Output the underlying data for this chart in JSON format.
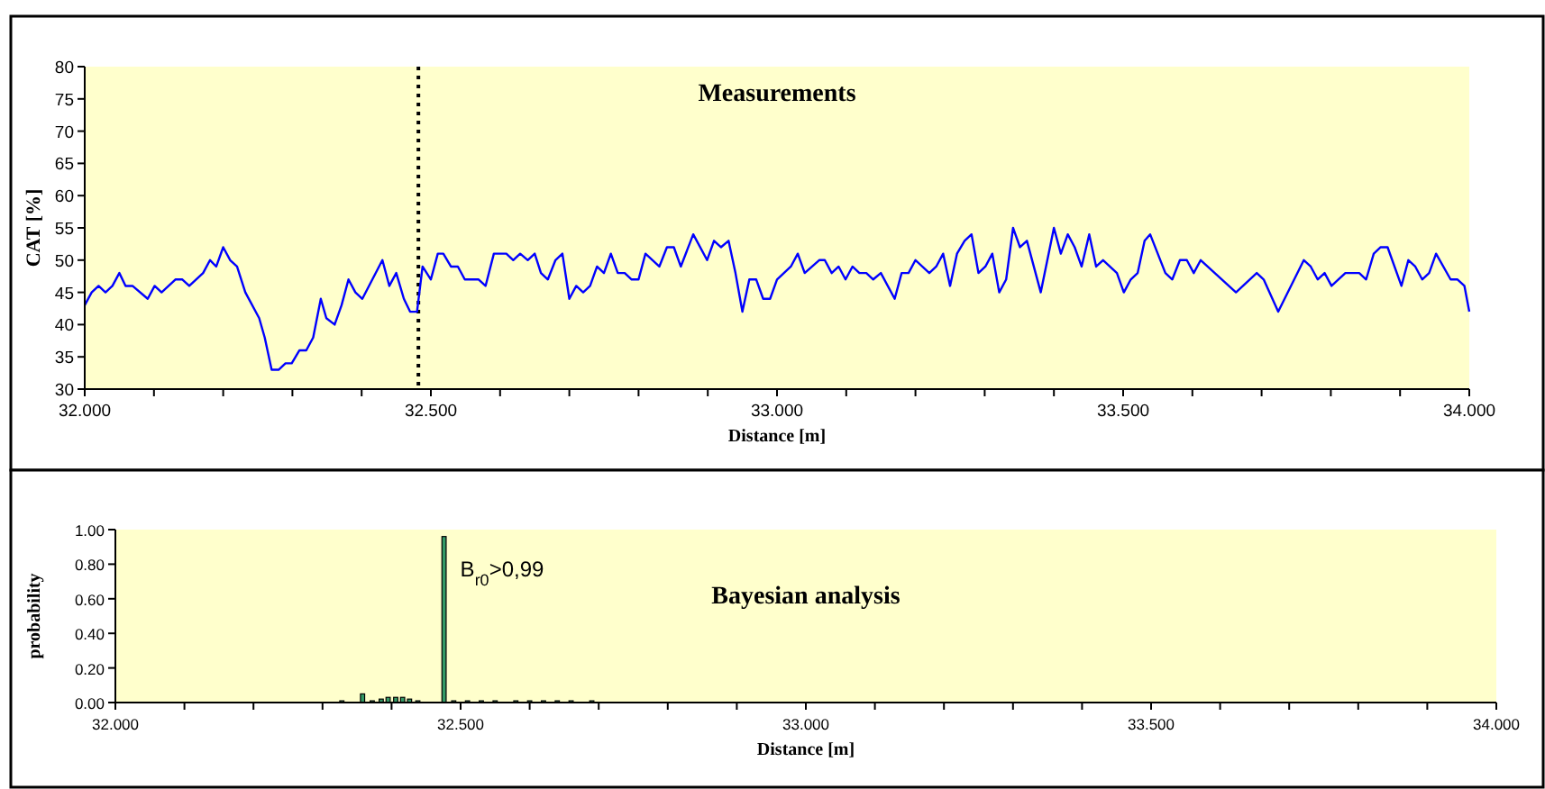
{
  "chart_data": [
    {
      "type": "line",
      "title": "Measurements",
      "xlabel": "Distance [m]",
      "ylabel": "CAT [%]",
      "grid": false,
      "marker": "none",
      "line_style": "solid",
      "xlim": [
        32,
        34
      ],
      "ylim": [
        30,
        80
      ],
      "yticks": [
        30,
        35,
        40,
        45,
        50,
        55,
        60,
        65,
        70,
        75,
        80
      ],
      "xticks": [
        {
          "value": 32,
          "label": "32.000"
        },
        {
          "value": 32.1,
          "label": null
        },
        {
          "value": 32.2,
          "label": null
        },
        {
          "value": 32.3,
          "label": null
        },
        {
          "value": 32.4,
          "label": null
        },
        {
          "value": 32.5,
          "label": "32.500"
        },
        {
          "value": 32.6,
          "label": null
        },
        {
          "value": 32.7,
          "label": null
        },
        {
          "value": 32.8,
          "label": null
        },
        {
          "value": 32.9,
          "label": null
        },
        {
          "value": 33,
          "label": "33.000"
        },
        {
          "value": 33.1,
          "label": null
        },
        {
          "value": 33.2,
          "label": null
        },
        {
          "value": 33.3,
          "label": null
        },
        {
          "value": 33.4,
          "label": null
        },
        {
          "value": 33.5,
          "label": "33.500"
        },
        {
          "value": 33.6,
          "label": null
        },
        {
          "value": 33.7,
          "label": null
        },
        {
          "value": 33.8,
          "label": null
        },
        {
          "value": 33.9,
          "label": null
        },
        {
          "value": 34,
          "label": "34.000"
        }
      ],
      "ref_lines": [
        {
          "axis": "x",
          "value": 32.482,
          "color": "#000000",
          "line_style": "dotted"
        }
      ],
      "series": [
        {
          "color": "#0000ff",
          "x": [
            32.0,
            32.01,
            32.02,
            32.03,
            32.04,
            32.05,
            32.059,
            32.069,
            32.091,
            32.101,
            32.111,
            32.131,
            32.141,
            32.151,
            32.171,
            32.181,
            32.19,
            32.2,
            32.21,
            32.22,
            32.232,
            32.252,
            32.26,
            32.27,
            32.28,
            32.29,
            32.299,
            32.31,
            32.32,
            32.33,
            32.341,
            32.349,
            32.361,
            32.371,
            32.381,
            32.391,
            32.401,
            32.43,
            32.44,
            32.45,
            32.461,
            32.47,
            32.48,
            32.488,
            32.5,
            32.51,
            32.518,
            32.529,
            32.539,
            32.549,
            32.569,
            32.579,
            32.591,
            32.609,
            32.619,
            32.629,
            32.64,
            32.65,
            32.659,
            32.669,
            32.68,
            32.69,
            32.7,
            32.71,
            32.72,
            32.73,
            32.74,
            32.75,
            32.76,
            32.77,
            32.78,
            32.79,
            32.8,
            32.81,
            32.83,
            32.841,
            32.851,
            32.861,
            32.879,
            32.899,
            32.909,
            32.919,
            32.93,
            32.94,
            32.95,
            32.96,
            32.97,
            32.98,
            32.99,
            33.0,
            33.02,
            33.03,
            33.04,
            33.061,
            33.069,
            33.079,
            33.089,
            33.099,
            33.109,
            33.119,
            33.129,
            33.139,
            33.15,
            33.17,
            33.18,
            33.19,
            33.2,
            33.22,
            33.23,
            33.24,
            33.25,
            33.26,
            33.271,
            33.281,
            33.291,
            33.301,
            33.311,
            33.321,
            33.331,
            33.341,
            33.351,
            33.361,
            33.381,
            33.4,
            33.41,
            33.42,
            33.43,
            33.44,
            33.451,
            33.461,
            33.471,
            33.491,
            33.501,
            33.511,
            33.521,
            33.531,
            33.539,
            33.561,
            33.571,
            33.582,
            33.592,
            33.602,
            33.612,
            33.663,
            33.693,
            33.703,
            33.724,
            33.761,
            33.771,
            33.781,
            33.791,
            33.801,
            33.821,
            33.841,
            33.851,
            33.862,
            33.872,
            33.882,
            33.902,
            33.912,
            33.922,
            33.932,
            33.942,
            33.952,
            33.973,
            33.983,
            33.993,
            34.0
          ],
          "values": [
            43,
            45,
            46,
            45,
            46,
            48,
            46,
            46,
            44,
            46,
            45,
            47,
            47,
            46,
            48,
            50,
            49,
            52,
            50,
            49,
            45,
            41,
            38,
            33,
            33,
            34,
            34,
            36,
            36,
            38,
            44,
            41,
            40,
            43,
            47,
            45,
            44,
            50,
            46,
            48,
            44,
            42,
            42,
            49,
            47,
            51,
            51,
            49,
            49,
            47,
            47,
            46,
            51,
            51,
            50,
            51,
            50,
            51,
            48,
            47,
            50,
            51,
            44,
            46,
            45,
            46,
            49,
            48,
            51,
            48,
            48,
            47,
            47,
            51,
            49,
            52,
            52,
            49,
            54,
            50,
            53,
            52,
            53,
            48,
            42,
            47,
            47,
            44,
            44,
            47,
            49,
            51,
            48,
            50,
            50,
            48,
            49,
            47,
            49,
            48,
            48,
            47,
            48,
            44,
            48,
            48,
            50,
            48,
            49,
            51,
            46,
            51,
            53,
            54,
            48,
            49,
            51,
            45,
            47,
            55,
            52,
            53,
            45,
            55,
            51,
            54,
            52,
            49,
            54,
            49,
            50,
            48,
            45,
            47,
            48,
            53,
            54,
            48,
            47,
            50,
            50,
            48,
            50,
            45,
            48,
            47,
            42,
            50,
            49,
            47,
            48,
            46,
            48,
            48,
            47,
            51,
            52,
            52,
            46,
            50,
            49,
            47,
            48,
            51,
            47,
            47,
            46,
            42
          ]
        }
      ]
    },
    {
      "type": "bar",
      "title": "Bayesian analysis",
      "xlabel": "Distance [m]",
      "ylabel": "probability",
      "grid": false,
      "xlim": [
        32,
        34
      ],
      "ylim": [
        0,
        1
      ],
      "yticks": [
        {
          "value": 0,
          "label": "0.00"
        },
        {
          "value": 0.2,
          "label": "0.20"
        },
        {
          "value": 0.4,
          "label": "0.40"
        },
        {
          "value": 0.6,
          "label": "0.60"
        },
        {
          "value": 0.8,
          "label": "0.80"
        },
        {
          "value": 1,
          "label": "1.00"
        }
      ],
      "xticks": [
        {
          "value": 32,
          "label": "32.000"
        },
        {
          "value": 32.1,
          "label": null
        },
        {
          "value": 32.2,
          "label": null
        },
        {
          "value": 32.3,
          "label": null
        },
        {
          "value": 32.4,
          "label": null
        },
        {
          "value": 32.5,
          "label": "32.500"
        },
        {
          "value": 32.6,
          "label": null
        },
        {
          "value": 32.7,
          "label": null
        },
        {
          "value": 32.8,
          "label": null
        },
        {
          "value": 32.9,
          "label": null
        },
        {
          "value": 33,
          "label": "33.000"
        },
        {
          "value": 33.1,
          "label": null
        },
        {
          "value": 33.2,
          "label": null
        },
        {
          "value": 33.3,
          "label": null
        },
        {
          "value": 33.4,
          "label": null
        },
        {
          "value": 33.5,
          "label": "33.500"
        },
        {
          "value": 33.6,
          "label": null
        },
        {
          "value": 33.7,
          "label": null
        },
        {
          "value": 33.8,
          "label": null
        },
        {
          "value": 33.9,
          "label": null
        },
        {
          "value": 34,
          "label": "34.000"
        }
      ],
      "annotations": [
        {
          "text": "B$_{r0}$>0,99",
          "x": 32.476,
          "y": 0.96
        }
      ],
      "series": [
        {
          "color": "#339966",
          "x": [
            32.328,
            32.358,
            32.372,
            32.385,
            32.395,
            32.406,
            32.416,
            32.426,
            32.438,
            32.476,
            32.49,
            32.51,
            32.53,
            32.55,
            32.58,
            32.6,
            32.62,
            32.64,
            32.66,
            32.69
          ],
          "values": [
            0.01,
            0.05,
            0.01,
            0.02,
            0.03,
            0.03,
            0.03,
            0.02,
            0.01,
            0.96,
            0.01,
            0.01,
            0.01,
            0.01,
            0.01,
            0.01,
            0.01,
            0.01,
            0.01,
            0.01
          ]
        }
      ]
    }
  ]
}
